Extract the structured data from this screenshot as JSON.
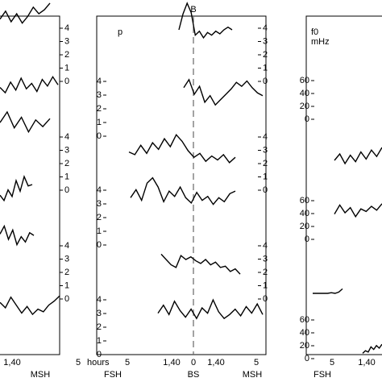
{
  "chart_data": [
    {
      "type": "line",
      "right_axes": [
        [
          4,
          3,
          2,
          1,
          0
        ],
        [
          4,
          3,
          2,
          1,
          0
        ],
        [
          4,
          3,
          2,
          1,
          0
        ]
      ],
      "xtick_labels": [
        "1,40",
        "5"
      ],
      "x_unit": "hours",
      "stations": [
        "MSH"
      ],
      "series": [
        {
          "values": [
            2.2,
            2.8,
            2.0,
            2.6,
            1.9,
            2.4,
            3.1,
            2.6,
            2.9,
            3.4
          ]
        },
        {
          "values": [
            1.0,
            0.6,
            1.4,
            0.8,
            1.7,
            0.9,
            1.3,
            0.7,
            1.6,
            1.1,
            1.8,
            1.2
          ]
        },
        {
          "values": [
            2.6,
            3.4,
            2.2,
            3.0,
            1.9,
            2.8,
            2.3,
            2.9
          ]
        },
        {
          "values": [
            1.2,
            0.8,
            1.6,
            1.1,
            2.3,
            1.5,
            2.6,
            1.9,
            2.0
          ]
        },
        {
          "values": [
            2.4,
            3.0,
            2.0,
            2.7,
            1.6,
            2.2,
            1.8,
            2.5,
            2.3
          ]
        },
        {
          "values": [
            1.8,
            1.4,
            2.2,
            1.6,
            1.0,
            1.5,
            0.9,
            1.3,
            1.1,
            1.6,
            1.9,
            2.3
          ]
        }
      ]
    },
    {
      "type": "line",
      "title": "B",
      "annotation": "p",
      "left_axes": [
        [
          4,
          3,
          2,
          1,
          0
        ],
        [
          4,
          3,
          2,
          1,
          0
        ],
        [
          4,
          3,
          2,
          1,
          0
        ]
      ],
      "right_axes": [
        [
          4,
          3,
          2,
          1,
          0
        ],
        [
          4,
          3,
          2,
          1,
          0
        ],
        [
          4,
          3,
          2,
          1,
          0
        ]
      ],
      "xtick_labels": [
        "5",
        "1,40",
        "0",
        "1,40",
        "5"
      ],
      "stations": [
        "FSH",
        "BS",
        "MSH"
      ],
      "series": [
        {
          "values": [
            2.0,
            3.2,
            4.0,
            3.3,
            1.6,
            1.9,
            1.4,
            1.8,
            1.6,
            1.9,
            1.7,
            2.0,
            2.2,
            2.0
          ]
        },
        {
          "values": [
            2.5,
            3.1,
            2.0,
            2.6,
            1.4,
            1.9,
            1.2,
            1.6,
            2.0,
            2.4,
            2.9,
            2.6,
            3.0,
            2.5,
            2.1,
            1.9
          ]
        },
        {
          "values": [
            1.6,
            1.4,
            2.1,
            1.5,
            2.3,
            1.8,
            2.6,
            2.0,
            2.9,
            2.4,
            1.7,
            1.2,
            1.5,
            0.9,
            1.3,
            1.0,
            1.4,
            0.8,
            1.2
          ]
        },
        {
          "values": [
            1.8,
            2.4,
            1.6,
            2.9,
            3.3,
            2.6,
            1.5,
            2.3,
            1.9,
            2.6,
            1.8,
            1.4,
            2.2,
            1.6,
            1.9,
            1.3,
            1.8,
            1.5,
            2.1,
            2.3
          ]
        },
        {
          "values": [
            2.4,
            2.0,
            1.6,
            1.4,
            2.3,
            2.0,
            2.2,
            1.9,
            1.7,
            2.0,
            1.6,
            1.8,
            1.4,
            1.5,
            1.1,
            1.3,
            0.9
          ]
        },
        {
          "values": [
            1.6,
            2.2,
            1.5,
            2.5,
            1.8,
            1.3,
            1.9,
            1.2,
            2.0,
            1.6,
            2.6,
            1.7,
            1.2,
            1.5,
            1.9,
            1.4,
            2.1,
            1.6,
            2.3,
            1.5
          ]
        }
      ]
    },
    {
      "type": "line",
      "annotation": "f0",
      "unit": "mHz",
      "left_axes": [
        [
          60,
          40,
          20,
          0
        ],
        [
          60,
          40,
          20,
          0
        ],
        [
          60,
          40,
          20,
          0
        ]
      ],
      "xtick_labels": [
        "5",
        "1,40"
      ],
      "stations": [
        "FSH"
      ],
      "series": [
        {
          "values": [
            20,
            30,
            15,
            28,
            18,
            33,
            22,
            36,
            26,
            40
          ]
        },
        {
          "values": [
            18,
            32,
            20,
            28,
            14,
            26,
            22,
            30,
            24,
            34
          ]
        },
        {
          "values": [
            5,
            5,
            5,
            5,
            5,
            6,
            5,
            7,
            12
          ]
        },
        {
          "values": [
            2,
            6,
            4,
            12,
            8,
            14,
            10,
            16
          ]
        }
      ]
    }
  ]
}
